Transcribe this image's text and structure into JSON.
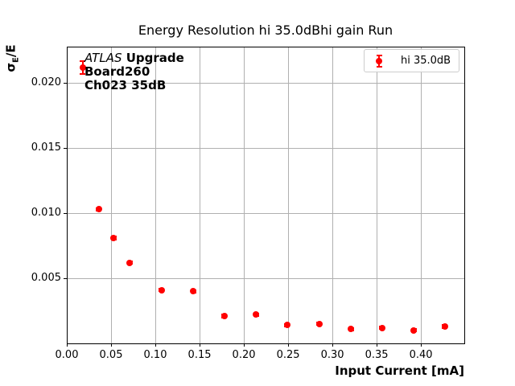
{
  "colors": {
    "series": "#ff0000",
    "grid": "#b0b0b0",
    "spine": "#000000",
    "legend_border": "#cccccc",
    "text": "#000000"
  },
  "annotation": {
    "line1_italic": "ATLAS",
    "line1_bold": " Upgrade",
    "line2": "Board260",
    "line3": "Ch023 35dB"
  },
  "y_axis_label_parts": {
    "sigma": "σ",
    "sub": "E",
    "rest": "/E"
  },
  "chart_data": {
    "type": "scatter",
    "title": "Energy Resolution hi 35.0dBhi gain Run",
    "xlabel": "Input Current [mA]",
    "ylabel": "σE/E",
    "xlim": [
      0.0,
      0.449
    ],
    "ylim": [
      0.0,
      0.0228
    ],
    "grid": true,
    "legend_position": "upper right",
    "x_ticks": [
      {
        "value": 0.0,
        "label": "0.00"
      },
      {
        "value": 0.05,
        "label": "0.05"
      },
      {
        "value": 0.1,
        "label": "0.10"
      },
      {
        "value": 0.15,
        "label": "0.15"
      },
      {
        "value": 0.2,
        "label": "0.20"
      },
      {
        "value": 0.25,
        "label": "0.25"
      },
      {
        "value": 0.3,
        "label": "0.30"
      },
      {
        "value": 0.35,
        "label": "0.35"
      },
      {
        "value": 0.4,
        "label": "0.40"
      }
    ],
    "y_ticks": [
      {
        "value": 0.005,
        "label": "0.005"
      },
      {
        "value": 0.01,
        "label": "0.010"
      },
      {
        "value": 0.015,
        "label": "0.015"
      },
      {
        "value": 0.02,
        "label": "0.020"
      }
    ],
    "series": [
      {
        "name": "hi 35.0dB",
        "color": "#ff0000",
        "marker": "circle",
        "points": [
          {
            "x": 0.018,
            "y": 0.0212,
            "yerr": 0.0005
          },
          {
            "x": 0.036,
            "y": 0.0103,
            "yerr": 0.0001
          },
          {
            "x": 0.053,
            "y": 0.0081,
            "yerr": 0.0001
          },
          {
            "x": 0.071,
            "y": 0.0062,
            "yerr": 0.0001
          },
          {
            "x": 0.107,
            "y": 0.0041,
            "yerr": 0.0001
          },
          {
            "x": 0.143,
            "y": 0.004,
            "yerr": 0.0001
          },
          {
            "x": 0.178,
            "y": 0.0021,
            "yerr": 0.0001
          },
          {
            "x": 0.214,
            "y": 0.0022,
            "yerr": 0.0001
          },
          {
            "x": 0.249,
            "y": 0.0014,
            "yerr": 0.0001
          },
          {
            "x": 0.285,
            "y": 0.0015,
            "yerr": 0.0001
          },
          {
            "x": 0.321,
            "y": 0.0011,
            "yerr": 0.0001
          },
          {
            "x": 0.356,
            "y": 0.0012,
            "yerr": 0.0001
          },
          {
            "x": 0.392,
            "y": 0.001,
            "yerr": 0.0001
          },
          {
            "x": 0.427,
            "y": 0.0013,
            "yerr": 0.0001
          }
        ]
      }
    ]
  }
}
